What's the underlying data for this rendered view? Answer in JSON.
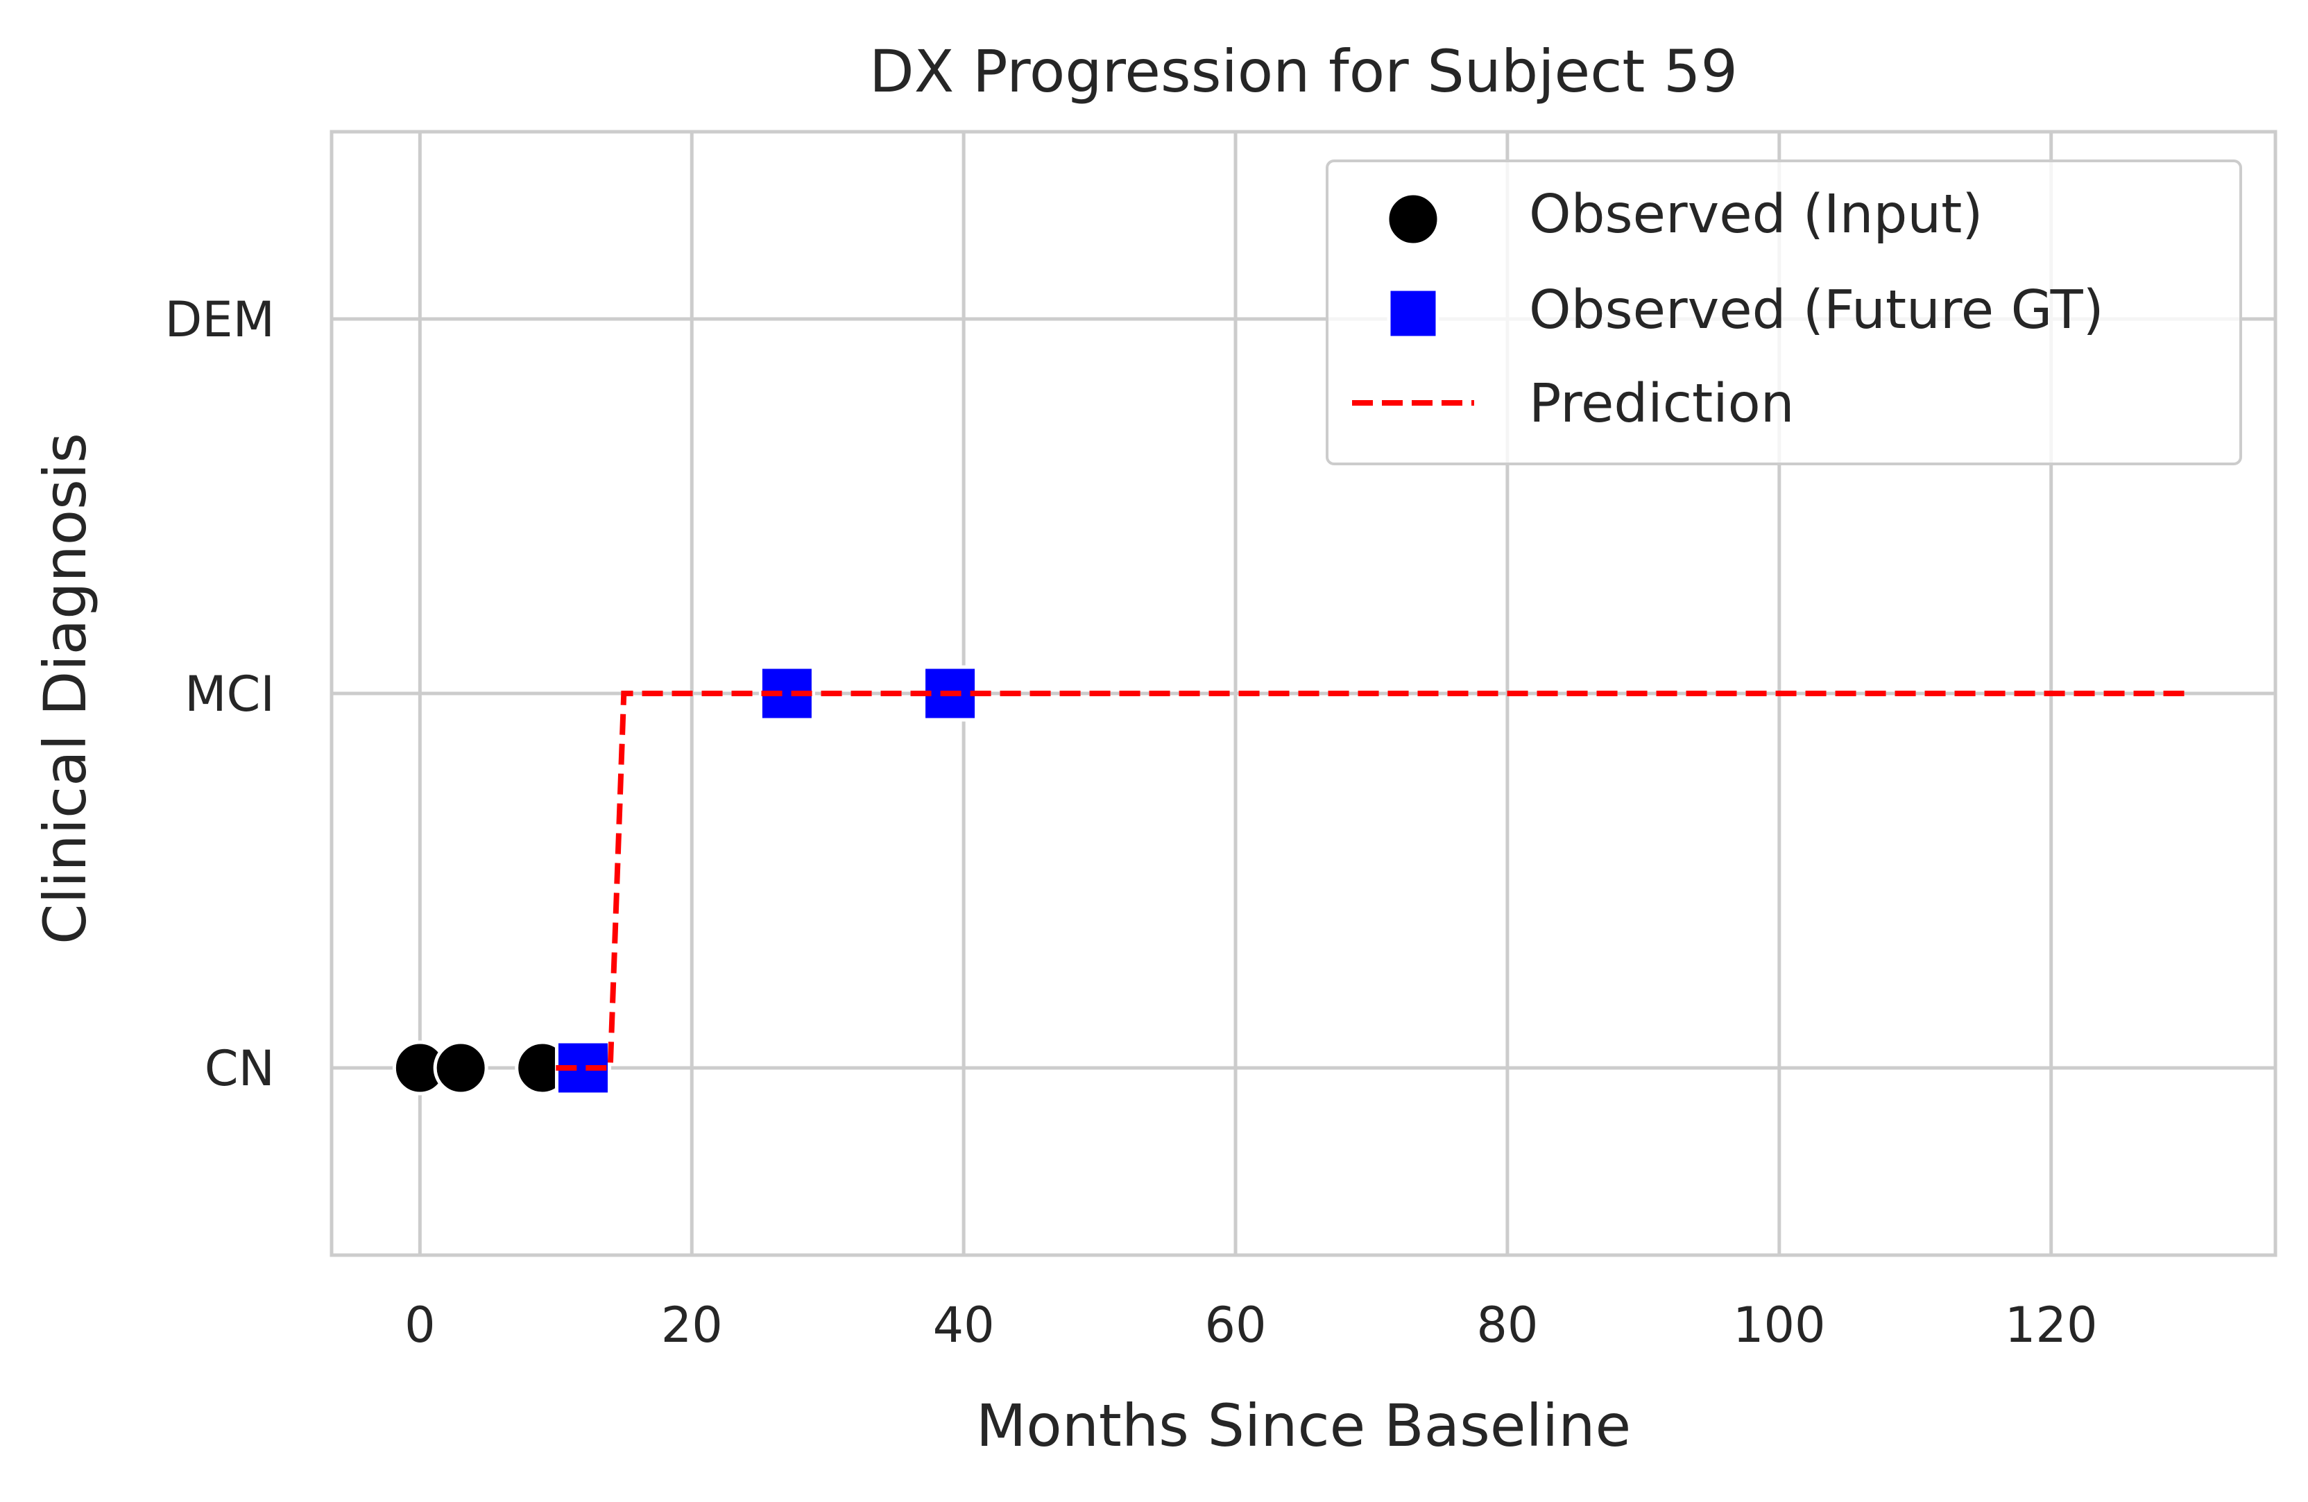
{
  "chart_data": {
    "type": "scatter",
    "title": "DX Progression for Subject 59",
    "xlabel": "Months Since Baseline",
    "ylabel": "Clinical Diagnosis",
    "xlim": [
      -6.5,
      136.5
    ],
    "ylim": [
      -0.5,
      2.5
    ],
    "x_ticks": [
      0,
      20,
      40,
      60,
      80,
      100,
      120
    ],
    "y_categories": [
      "CN",
      "MCI",
      "DEM"
    ],
    "grid": true,
    "legend_position": "top-right",
    "series": [
      {
        "name": "Observed (Input)",
        "kind": "scatter",
        "marker": "circle",
        "color": "#000000",
        "x": [
          0,
          3,
          9
        ],
        "y": [
          "CN",
          "CN",
          "CN"
        ]
      },
      {
        "name": "Observed (Future GT)",
        "kind": "scatter",
        "marker": "square",
        "color": "#0000ff",
        "x": [
          12,
          27,
          39
        ],
        "y": [
          "CN",
          "MCI",
          "MCI"
        ]
      },
      {
        "name": "Prediction",
        "kind": "line",
        "style": "dashed",
        "color": "#ff0000",
        "x": [
          10,
          14,
          15,
          130
        ],
        "y": [
          "CN",
          "CN",
          "MCI",
          "MCI"
        ]
      }
    ]
  }
}
